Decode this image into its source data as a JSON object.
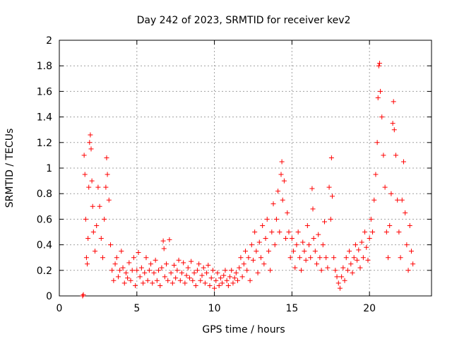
{
  "chart_data": {
    "type": "scatter",
    "title": "Day 242 of 2023, SRMTID for receiver kev2",
    "xlabel": "GPS time / hours",
    "ylabel": "SRMTID / TECUs",
    "xlim": [
      0,
      24
    ],
    "ylim": [
      0,
      2
    ],
    "xticks": [
      0,
      5,
      10,
      15,
      20
    ],
    "xtick_labels": [
      "0",
      "5",
      "10",
      "15",
      "20"
    ],
    "yticks": [
      0,
      0.2,
      0.4,
      0.6,
      0.8,
      1,
      1.2,
      1.4,
      1.6,
      1.8,
      2
    ],
    "ytick_labels": [
      "0",
      "0.2",
      "0.4",
      "0.6",
      "0.8",
      "1",
      "1.2",
      "1.4",
      "1.6",
      "1.8",
      "2"
    ],
    "grid": true,
    "marker": "+",
    "series": [
      {
        "name": "SRMTID",
        "color": "#ff0000",
        "points": [
          [
            1.5,
            0.0
          ],
          [
            1.55,
            0.01
          ],
          [
            1.6,
            1.1
          ],
          [
            1.65,
            0.95
          ],
          [
            1.7,
            0.6
          ],
          [
            1.75,
            0.3
          ],
          [
            1.8,
            0.25
          ],
          [
            1.85,
            0.45
          ],
          [
            1.9,
            0.85
          ],
          [
            1.95,
            1.2
          ],
          [
            2.0,
            1.26
          ],
          [
            2.05,
            1.15
          ],
          [
            2.1,
            0.9
          ],
          [
            2.15,
            0.7
          ],
          [
            2.2,
            0.5
          ],
          [
            2.3,
            0.35
          ],
          [
            2.4,
            0.55
          ],
          [
            2.5,
            0.85
          ],
          [
            2.6,
            0.7
          ],
          [
            2.7,
            0.45
          ],
          [
            2.8,
            0.3
          ],
          [
            2.9,
            0.6
          ],
          [
            3.0,
            0.85
          ],
          [
            3.05,
            1.08
          ],
          [
            3.1,
            0.95
          ],
          [
            3.2,
            0.75
          ],
          [
            3.3,
            0.4
          ],
          [
            3.4,
            0.2
          ],
          [
            3.5,
            0.12
          ],
          [
            3.6,
            0.25
          ],
          [
            3.7,
            0.3
          ],
          [
            3.8,
            0.15
          ],
          [
            3.9,
            0.2
          ],
          [
            4.0,
            0.35
          ],
          [
            4.1,
            0.22
          ],
          [
            4.2,
            0.1
          ],
          [
            4.3,
            0.18
          ],
          [
            4.4,
            0.14
          ],
          [
            4.5,
            0.26
          ],
          [
            4.6,
            0.12
          ],
          [
            4.7,
            0.2
          ],
          [
            4.8,
            0.3
          ],
          [
            4.9,
            0.08
          ],
          [
            5.0,
            0.2
          ],
          [
            5.1,
            0.34
          ],
          [
            5.2,
            0.15
          ],
          [
            5.3,
            0.22
          ],
          [
            5.4,
            0.1
          ],
          [
            5.5,
            0.18
          ],
          [
            5.6,
            0.3
          ],
          [
            5.7,
            0.12
          ],
          [
            5.8,
            0.2
          ],
          [
            5.9,
            0.25
          ],
          [
            6.0,
            0.1
          ],
          [
            6.1,
            0.18
          ],
          [
            6.2,
            0.28
          ],
          [
            6.3,
            0.12
          ],
          [
            6.4,
            0.2
          ],
          [
            6.5,
            0.08
          ],
          [
            6.6,
            0.22
          ],
          [
            6.7,
            0.43
          ],
          [
            6.75,
            0.37
          ],
          [
            6.8,
            0.15
          ],
          [
            6.9,
            0.25
          ],
          [
            7.0,
            0.12
          ],
          [
            7.1,
            0.44
          ],
          [
            7.2,
            0.18
          ],
          [
            7.3,
            0.1
          ],
          [
            7.4,
            0.24
          ],
          [
            7.5,
            0.14
          ],
          [
            7.6,
            0.2
          ],
          [
            7.7,
            0.28
          ],
          [
            7.8,
            0.12
          ],
          [
            7.9,
            0.18
          ],
          [
            8.0,
            0.26
          ],
          [
            8.1,
            0.1
          ],
          [
            8.2,
            0.16
          ],
          [
            8.3,
            0.22
          ],
          [
            8.4,
            0.14
          ],
          [
            8.5,
            0.27
          ],
          [
            8.6,
            0.12
          ],
          [
            8.7,
            0.18
          ],
          [
            8.8,
            0.08
          ],
          [
            8.9,
            0.2
          ],
          [
            9.0,
            0.25
          ],
          [
            9.1,
            0.12
          ],
          [
            9.2,
            0.16
          ],
          [
            9.3,
            0.22
          ],
          [
            9.4,
            0.1
          ],
          [
            9.5,
            0.18
          ],
          [
            9.6,
            0.24
          ],
          [
            9.7,
            0.08
          ],
          [
            9.8,
            0.14
          ],
          [
            9.9,
            0.2
          ],
          [
            10.0,
            0.06
          ],
          [
            10.1,
            0.12
          ],
          [
            10.2,
            0.18
          ],
          [
            10.3,
            0.08
          ],
          [
            10.4,
            0.14
          ],
          [
            10.5,
            0.1
          ],
          [
            10.6,
            0.16
          ],
          [
            10.7,
            0.2
          ],
          [
            10.8,
            0.12
          ],
          [
            10.9,
            0.08
          ],
          [
            11.0,
            0.15
          ],
          [
            11.1,
            0.2
          ],
          [
            11.2,
            0.1
          ],
          [
            11.3,
            0.14
          ],
          [
            11.4,
            0.18
          ],
          [
            11.5,
            0.12
          ],
          [
            11.6,
            0.22
          ],
          [
            11.7,
            0.3
          ],
          [
            11.8,
            0.15
          ],
          [
            11.9,
            0.25
          ],
          [
            12.0,
            0.35
          ],
          [
            12.1,
            0.2
          ],
          [
            12.2,
            0.3
          ],
          [
            12.3,
            0.12
          ],
          [
            12.4,
            0.4
          ],
          [
            12.5,
            0.28
          ],
          [
            12.6,
            0.5
          ],
          [
            12.7,
            0.35
          ],
          [
            12.8,
            0.18
          ],
          [
            12.9,
            0.42
          ],
          [
            13.0,
            0.3
          ],
          [
            13.1,
            0.55
          ],
          [
            13.2,
            0.25
          ],
          [
            13.3,
            0.45
          ],
          [
            13.4,
            0.6
          ],
          [
            13.5,
            0.35
          ],
          [
            13.6,
            0.2
          ],
          [
            13.7,
            0.5
          ],
          [
            13.8,
            0.72
          ],
          [
            13.9,
            0.4
          ],
          [
            14.0,
            0.6
          ],
          [
            14.1,
            0.82
          ],
          [
            14.2,
            0.5
          ],
          [
            14.3,
            0.95
          ],
          [
            14.35,
            1.05
          ],
          [
            14.4,
            0.75
          ],
          [
            14.5,
            0.9
          ],
          [
            14.6,
            0.45
          ],
          [
            14.7,
            0.65
          ],
          [
            14.8,
            0.5
          ],
          [
            14.9,
            0.3
          ],
          [
            15.0,
            0.45
          ],
          [
            15.1,
            0.35
          ],
          [
            15.2,
            0.22
          ],
          [
            15.3,
            0.4
          ],
          [
            15.4,
            0.5
          ],
          [
            15.5,
            0.3
          ],
          [
            15.6,
            0.2
          ],
          [
            15.7,
            0.42
          ],
          [
            15.8,
            0.35
          ],
          [
            15.9,
            0.28
          ],
          [
            16.0,
            0.55
          ],
          [
            16.1,
            0.4
          ],
          [
            16.2,
            0.3
          ],
          [
            16.3,
            0.84
          ],
          [
            16.35,
            0.68
          ],
          [
            16.4,
            0.45
          ],
          [
            16.5,
            0.35
          ],
          [
            16.6,
            0.25
          ],
          [
            16.7,
            0.48
          ],
          [
            16.8,
            0.3
          ],
          [
            16.9,
            0.2
          ],
          [
            17.0,
            0.4
          ],
          [
            17.1,
            0.58
          ],
          [
            17.2,
            0.3
          ],
          [
            17.3,
            0.22
          ],
          [
            17.4,
            0.85
          ],
          [
            17.5,
            0.6
          ],
          [
            17.55,
            1.08
          ],
          [
            17.6,
            0.78
          ],
          [
            17.7,
            0.3
          ],
          [
            17.8,
            0.2
          ],
          [
            17.9,
            0.15
          ],
          [
            18.0,
            0.1
          ],
          [
            18.1,
            0.06
          ],
          [
            18.2,
            0.15
          ],
          [
            18.3,
            0.22
          ],
          [
            18.4,
            0.12
          ],
          [
            18.5,
            0.3
          ],
          [
            18.6,
            0.2
          ],
          [
            18.7,
            0.35
          ],
          [
            18.8,
            0.25
          ],
          [
            18.9,
            0.18
          ],
          [
            19.0,
            0.3
          ],
          [
            19.1,
            0.4
          ],
          [
            19.2,
            0.28
          ],
          [
            19.3,
            0.36
          ],
          [
            19.4,
            0.22
          ],
          [
            19.5,
            0.42
          ],
          [
            19.6,
            0.3
          ],
          [
            19.7,
            0.5
          ],
          [
            19.8,
            0.38
          ],
          [
            19.9,
            0.28
          ],
          [
            20.0,
            0.45
          ],
          [
            20.1,
            0.6
          ],
          [
            20.2,
            0.5
          ],
          [
            20.3,
            0.75
          ],
          [
            20.4,
            0.95
          ],
          [
            20.5,
            1.2
          ],
          [
            20.55,
            1.55
          ],
          [
            20.6,
            1.8
          ],
          [
            20.65,
            1.82
          ],
          [
            20.7,
            1.6
          ],
          [
            20.8,
            1.4
          ],
          [
            20.9,
            1.1
          ],
          [
            21.0,
            0.85
          ],
          [
            21.1,
            0.5
          ],
          [
            21.2,
            0.3
          ],
          [
            21.3,
            0.55
          ],
          [
            21.4,
            0.8
          ],
          [
            21.5,
            1.35
          ],
          [
            21.55,
            1.52
          ],
          [
            21.6,
            1.3
          ],
          [
            21.7,
            1.1
          ],
          [
            21.8,
            0.75
          ],
          [
            21.9,
            0.5
          ],
          [
            22.0,
            0.3
          ],
          [
            22.1,
            0.75
          ],
          [
            22.2,
            1.05
          ],
          [
            22.3,
            0.65
          ],
          [
            22.4,
            0.4
          ],
          [
            22.5,
            0.2
          ],
          [
            22.6,
            0.55
          ],
          [
            22.7,
            0.35
          ],
          [
            22.8,
            0.25
          ]
        ]
      }
    ]
  }
}
